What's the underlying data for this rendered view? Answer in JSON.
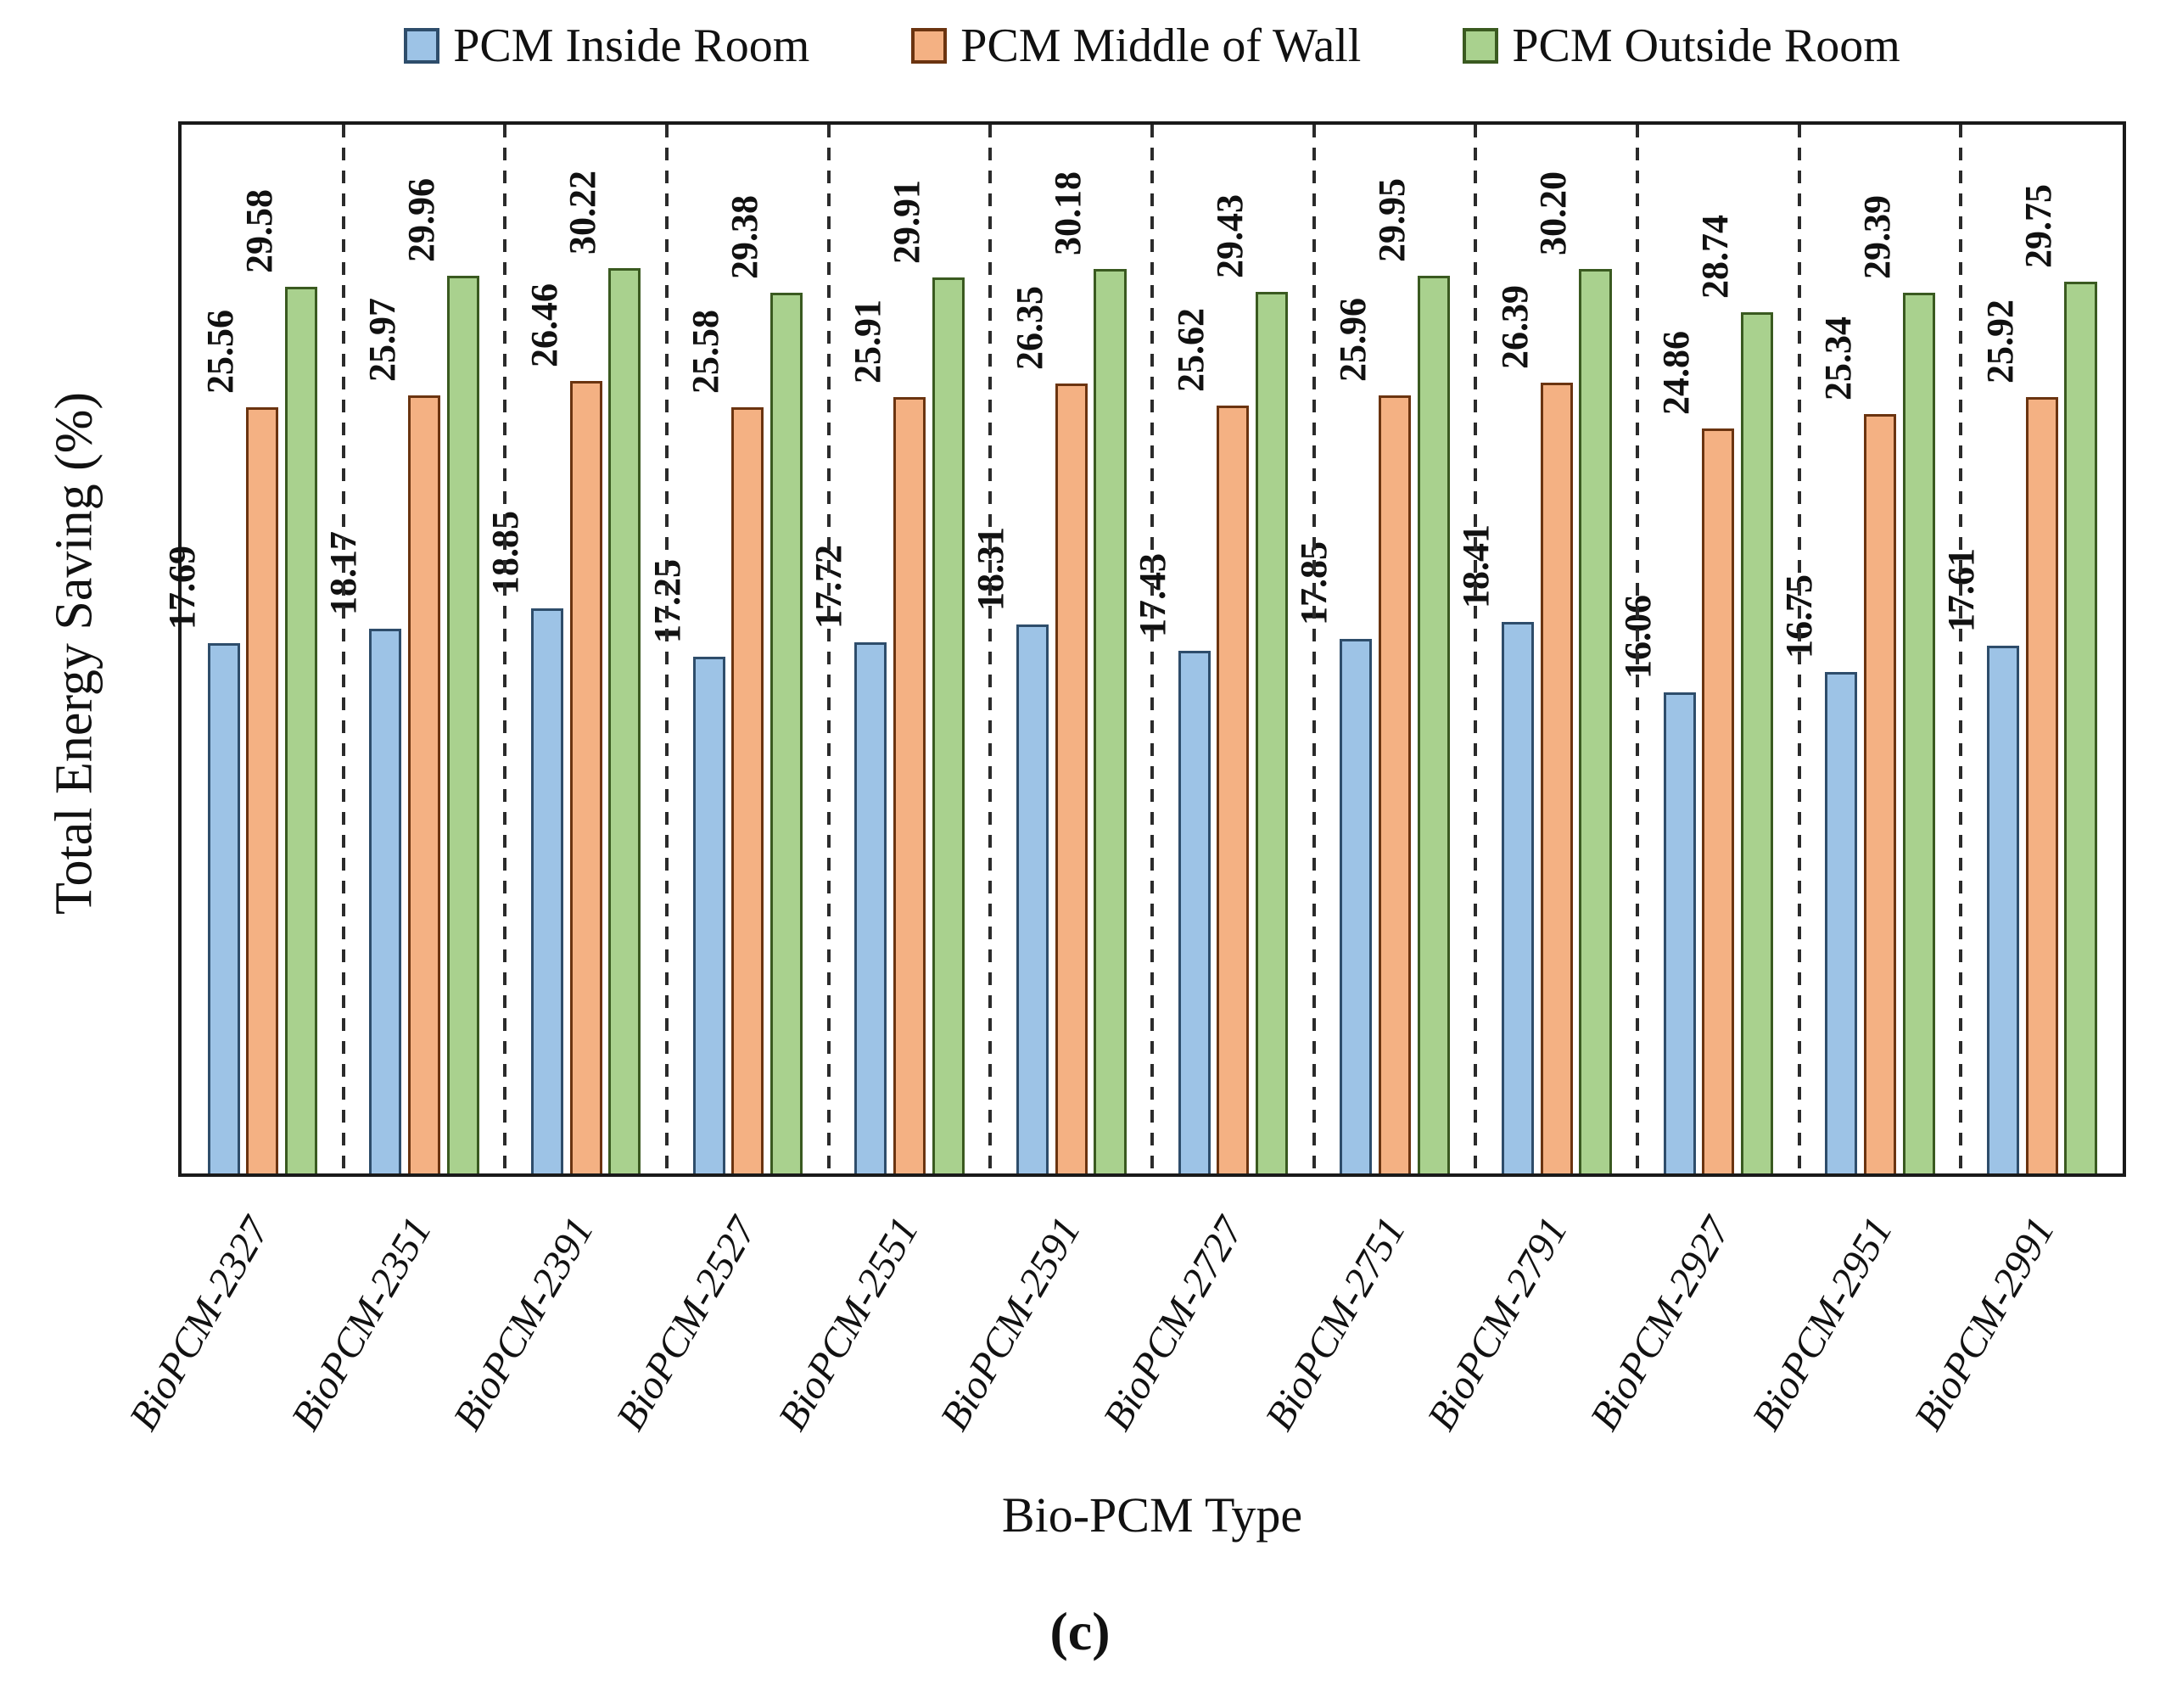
{
  "legend": [
    {
      "label": "PCM Inside Room",
      "fill": "#9DC3E6",
      "border": "#2E4D6B"
    },
    {
      "label": "PCM Middle of Wall",
      "fill": "#F4B183",
      "border": "#6B3410"
    },
    {
      "label": "PCM Outside Room",
      "fill": "#A9D18E",
      "border": "#3A5A20"
    }
  ],
  "chart_data": {
    "type": "bar",
    "title": "",
    "xlabel": "Bio-PCM Type",
    "ylabel": "Total Energy Saving (%)",
    "ylim": [
      0,
      35
    ],
    "grid": false,
    "legend_position": "top",
    "group_separators": "dashed-vertical-lines",
    "value_labels": "rotated-90-above-bars",
    "categories": [
      "BioPCM-2327",
      "BioPCM-2351",
      "BioPCM-2391",
      "BioPCM-2527",
      "BioPCM-2551",
      "BioPCM-2591",
      "BioPCM-2727",
      "BioPCM-2751",
      "BioPCM-2791",
      "BioPCM-2927",
      "BioPCM-2951",
      "BioPCM-2991"
    ],
    "series": [
      {
        "name": "PCM Inside Room",
        "values": [
          17.69,
          18.17,
          18.85,
          17.25,
          17.72,
          18.31,
          17.43,
          17.85,
          18.41,
          16.06,
          16.75,
          17.61
        ]
      },
      {
        "name": "PCM Middle of Wall",
        "values": [
          25.56,
          25.97,
          26.46,
          25.58,
          25.91,
          26.35,
          25.62,
          25.96,
          26.39,
          24.86,
          25.34,
          25.92
        ]
      },
      {
        "name": "PCM Outside Room",
        "values": [
          29.58,
          29.96,
          30.22,
          29.38,
          29.91,
          30.18,
          29.43,
          29.95,
          30.2,
          28.74,
          29.39,
          29.75
        ]
      }
    ]
  },
  "caption": "(c)"
}
